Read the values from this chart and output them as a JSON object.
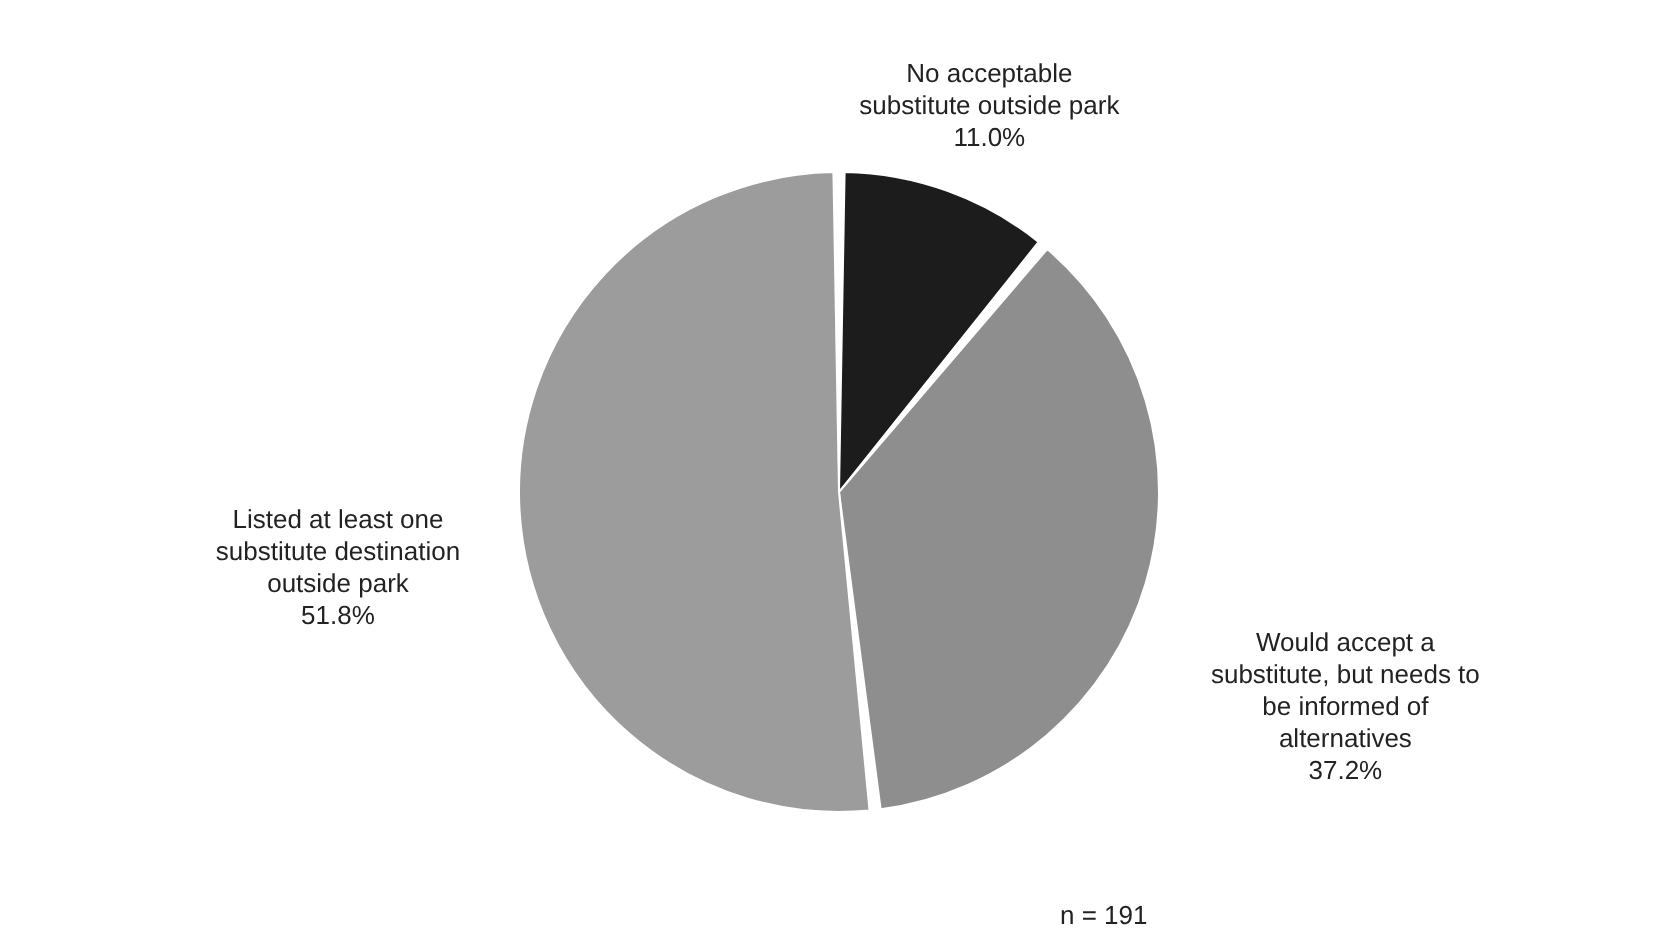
{
  "chart_data": {
    "type": "pie",
    "categories": [
      "No acceptable\nsubstitute outside park",
      "Would accept a\nsubstitute, but needs to\nbe informed of\nalternatives",
      "Listed at least one\nsubstitute destination\noutside park"
    ],
    "values": [
      11.0,
      37.2,
      51.8
    ],
    "value_labels": [
      "11.0%",
      "37.2%",
      "51.8%"
    ],
    "colors": [
      "#1c1c1c",
      "#8e8e8e",
      "#9c9c9c"
    ],
    "annotations": [
      "n = 191"
    ]
  }
}
